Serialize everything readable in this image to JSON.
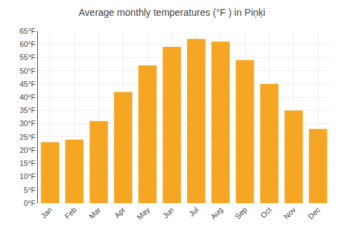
{
  "chart_data": {
    "type": "bar",
    "title": "Average monthly temperatures (°F ) in Piņķi",
    "categories": [
      "Jan",
      "Feb",
      "Mar",
      "Apr",
      "May",
      "Jun",
      "Jul",
      "Aug",
      "Sep",
      "Oct",
      "Nov",
      "Dec"
    ],
    "values": [
      23,
      24,
      31,
      42,
      52,
      59,
      62,
      61,
      54,
      45,
      35,
      28
    ],
    "color": "#F5A623",
    "ylim": [
      0,
      65
    ],
    "yticks": [
      {
        "value": 0,
        "label": "0°F"
      },
      {
        "value": 5,
        "label": "5°F"
      },
      {
        "value": 10,
        "label": "10°F"
      },
      {
        "value": 15,
        "label": "15°F"
      },
      {
        "value": 20,
        "label": "20°F"
      },
      {
        "value": 25,
        "label": "25°F"
      },
      {
        "value": 30,
        "label": "30°F"
      },
      {
        "value": 35,
        "label": "35°F"
      },
      {
        "value": 40,
        "label": "40°F"
      },
      {
        "value": 45,
        "label": "45°F"
      },
      {
        "value": 50,
        "label": "50°F"
      },
      {
        "value": 55,
        "label": "55°F"
      },
      {
        "value": 60,
        "label": "60°F"
      },
      {
        "value": 65,
        "label": "65°F"
      }
    ],
    "grid": true
  }
}
